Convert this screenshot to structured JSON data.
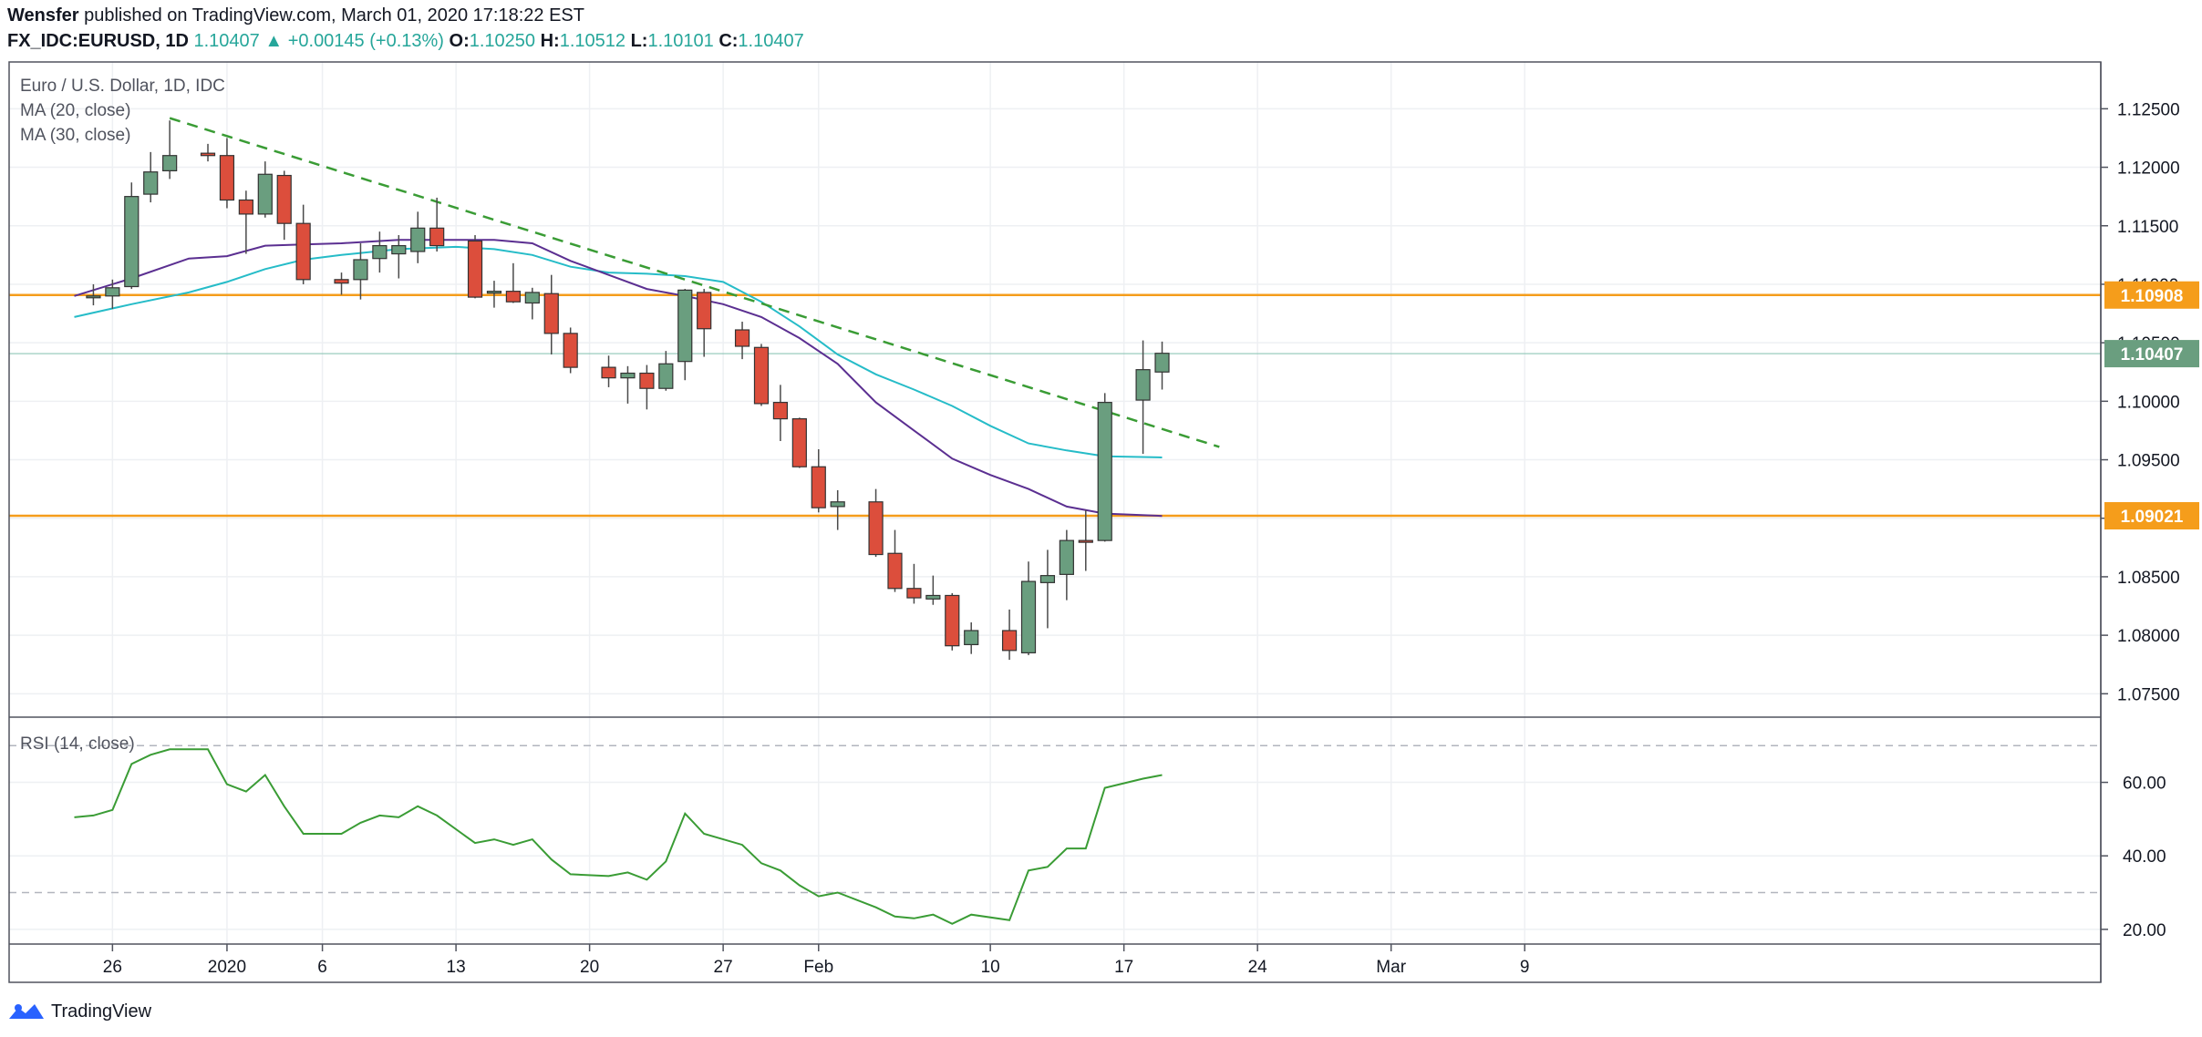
{
  "header": {
    "author": "Wensfer",
    "published_text": " published on TradingView.com, March 01, 2020 17:18:22 EST",
    "symbol": "FX_IDC:EURUSD, 1D",
    "last": "1.10407",
    "arrow": "▲",
    "change": "+0.00145 (+0.13%)",
    "o_label": "O:",
    "o_value": "1.10250",
    "h_label": "H:",
    "h_value": "1.10512",
    "l_label": "L:",
    "l_value": "1.10101",
    "c_label": "C:",
    "c_value": "1.10407"
  },
  "legend": {
    "title": "Euro / U.S. Dollar, 1D, IDC",
    "ma20": "MA (20, close)",
    "ma30": "MA (30, close)",
    "rsi": "RSI (14, close)"
  },
  "footer": {
    "brand": "TradingView"
  },
  "colors": {
    "up": "#6a9e7f",
    "down": "#dc4e3c",
    "ma20": "#5b2f91",
    "ma30": "#26bcc8",
    "trend": "#3a9c35",
    "hline": "#f59d1b",
    "rsi": "#3a9c35",
    "grid": "#eef0f3"
  },
  "chart_data": [
    {
      "type": "candlestick",
      "title": "Euro / U.S. Dollar, 1D, IDC",
      "ylim": [
        1.073,
        1.129
      ],
      "y_ticks": [
        1.075,
        1.08,
        1.085,
        1.09,
        1.095,
        1.1,
        1.105,
        1.11,
        1.115,
        1.12,
        1.125
      ],
      "y_tick_labels": [
        "1.07500",
        "1.08000",
        "1.08500",
        "1.09000",
        "1.09500",
        "1.10000",
        "1.10500",
        "1.11000",
        "1.11500",
        "1.12000",
        "1.12500"
      ],
      "x_ticks": [
        {
          "label": "26",
          "day": 2
        },
        {
          "label": "2020",
          "day": 8
        },
        {
          "label": "6",
          "day": 13
        },
        {
          "label": "13",
          "day": 20
        },
        {
          "label": "20",
          "day": 27
        },
        {
          "label": "27",
          "day": 34
        },
        {
          "label": "Feb",
          "day": 39
        },
        {
          "label": "10",
          "day": 48
        },
        {
          "label": "17",
          "day": 55
        },
        {
          "label": "24",
          "day": 62
        },
        {
          "label": "Mar",
          "day": 69
        },
        {
          "label": "9",
          "day": 76
        }
      ],
      "candles": [
        {
          "day": 1,
          "o": 1.1089,
          "h": 1.11,
          "l": 1.1082,
          "c": 1.109
        },
        {
          "day": 2,
          "o": 1.109,
          "h": 1.1104,
          "l": 1.1079,
          "c": 1.1097
        },
        {
          "day": 3,
          "o": 1.1098,
          "h": 1.1187,
          "l": 1.1096,
          "c": 1.1175
        },
        {
          "day": 4,
          "o": 1.1177,
          "h": 1.1213,
          "l": 1.117,
          "c": 1.1196
        },
        {
          "day": 5,
          "o": 1.1197,
          "h": 1.124,
          "l": 1.119,
          "c": 1.121
        },
        {
          "day": 7,
          "o": 1.1212,
          "h": 1.122,
          "l": 1.1205,
          "c": 1.121
        },
        {
          "day": 8,
          "o": 1.121,
          "h": 1.1225,
          "l": 1.1165,
          "c": 1.1172
        },
        {
          "day": 9,
          "o": 1.1172,
          "h": 1.118,
          "l": 1.1126,
          "c": 1.116
        },
        {
          "day": 10,
          "o": 1.116,
          "h": 1.1205,
          "l": 1.1157,
          "c": 1.1194
        },
        {
          "day": 11,
          "o": 1.1193,
          "h": 1.1197,
          "l": 1.1138,
          "c": 1.1152
        },
        {
          "day": 12,
          "o": 1.1152,
          "h": 1.1168,
          "l": 1.11,
          "c": 1.1104
        },
        {
          "day": 14,
          "o": 1.1104,
          "h": 1.111,
          "l": 1.1091,
          "c": 1.1101
        },
        {
          "day": 15,
          "o": 1.1104,
          "h": 1.1135,
          "l": 1.1087,
          "c": 1.1121
        },
        {
          "day": 16,
          "o": 1.1122,
          "h": 1.1145,
          "l": 1.111,
          "c": 1.1133
        },
        {
          "day": 17,
          "o": 1.1126,
          "h": 1.1142,
          "l": 1.1105,
          "c": 1.1133
        },
        {
          "day": 18,
          "o": 1.1128,
          "h": 1.1162,
          "l": 1.1118,
          "c": 1.1148
        },
        {
          "day": 19,
          "o": 1.1148,
          "h": 1.1174,
          "l": 1.1128,
          "c": 1.1133
        },
        {
          "day": 21,
          "o": 1.1137,
          "h": 1.1142,
          "l": 1.1088,
          "c": 1.1089
        },
        {
          "day": 22,
          "o": 1.1094,
          "h": 1.1103,
          "l": 1.108,
          "c": 1.1094
        },
        {
          "day": 23,
          "o": 1.1094,
          "h": 1.1118,
          "l": 1.1084,
          "c": 1.1085
        },
        {
          "day": 24,
          "o": 1.1084,
          "h": 1.1097,
          "l": 1.107,
          "c": 1.1093
        },
        {
          "day": 25,
          "o": 1.1092,
          "h": 1.1108,
          "l": 1.104,
          "c": 1.1058
        },
        {
          "day": 26,
          "o": 1.1058,
          "h": 1.1063,
          "l": 1.1024,
          "c": 1.1029
        },
        {
          "day": 28,
          "o": 1.1029,
          "h": 1.1039,
          "l": 1.1012,
          "c": 1.102
        },
        {
          "day": 29,
          "o": 1.102,
          "h": 1.103,
          "l": 1.0998,
          "c": 1.1024
        },
        {
          "day": 30,
          "o": 1.1024,
          "h": 1.1031,
          "l": 1.0993,
          "c": 1.1011
        },
        {
          "day": 31,
          "o": 1.1011,
          "h": 1.1043,
          "l": 1.1009,
          "c": 1.1032
        },
        {
          "day": 32,
          "o": 1.1034,
          "h": 1.1096,
          "l": 1.1018,
          "c": 1.1095
        },
        {
          "day": 33,
          "o": 1.1093,
          "h": 1.1096,
          "l": 1.1038,
          "c": 1.1062
        },
        {
          "day": 35,
          "o": 1.1061,
          "h": 1.1068,
          "l": 1.1036,
          "c": 1.1047
        },
        {
          "day": 36,
          "o": 1.1046,
          "h": 1.1049,
          "l": 1.0996,
          "c": 1.0998
        },
        {
          "day": 37,
          "o": 1.0999,
          "h": 1.1014,
          "l": 1.0966,
          "c": 1.0985
        },
        {
          "day": 38,
          "o": 1.0985,
          "h": 1.0986,
          "l": 1.0943,
          "c": 1.0944
        },
        {
          "day": 39,
          "o": 1.0944,
          "h": 1.0959,
          "l": 1.0905,
          "c": 1.0909
        },
        {
          "day": 40,
          "o": 1.091,
          "h": 1.0924,
          "l": 1.089,
          "c": 1.0914
        },
        {
          "day": 42,
          "o": 1.0914,
          "h": 1.0925,
          "l": 1.0867,
          "c": 1.0869
        },
        {
          "day": 43,
          "o": 1.087,
          "h": 1.089,
          "l": 1.0837,
          "c": 1.084
        },
        {
          "day": 44,
          "o": 1.084,
          "h": 1.0861,
          "l": 1.0827,
          "c": 1.0832
        },
        {
          "day": 45,
          "o": 1.0831,
          "h": 1.0851,
          "l": 1.0826,
          "c": 1.0834
        },
        {
          "day": 46,
          "o": 1.0834,
          "h": 1.0836,
          "l": 1.0787,
          "c": 1.0791
        },
        {
          "day": 47,
          "o": 1.0792,
          "h": 1.0811,
          "l": 1.0784,
          "c": 1.0804
        },
        {
          "day": 49,
          "o": 1.0804,
          "h": 1.0822,
          "l": 1.0779,
          "c": 1.0787
        },
        {
          "day": 50,
          "o": 1.0785,
          "h": 1.0863,
          "l": 1.0783,
          "c": 1.0846
        },
        {
          "day": 51,
          "o": 1.0845,
          "h": 1.0873,
          "l": 1.0806,
          "c": 1.0851
        },
        {
          "day": 52,
          "o": 1.0852,
          "h": 1.089,
          "l": 1.083,
          "c": 1.0881
        },
        {
          "day": 53,
          "o": 1.0881,
          "h": 1.0907,
          "l": 1.0855,
          "c": 1.088
        },
        {
          "day": 54,
          "o": 1.0881,
          "h": 1.1007,
          "l": 1.088,
          "c": 1.0999
        },
        {
          "day": 56,
          "o": 1.1001,
          "h": 1.1052,
          "l": 1.0955,
          "c": 1.1027
        },
        {
          "day": 57,
          "o": 1.1025,
          "h": 1.1051,
          "l": 1.101,
          "c": 1.1041
        }
      ],
      "ma20": [
        [
          0,
          1.109
        ],
        [
          3,
          1.1105
        ],
        [
          6,
          1.1122
        ],
        [
          8,
          1.1124
        ],
        [
          10,
          1.1133
        ],
        [
          12,
          1.1134
        ],
        [
          14,
          1.1135
        ],
        [
          17,
          1.1138
        ],
        [
          20,
          1.1138
        ],
        [
          22,
          1.1138
        ],
        [
          24,
          1.1135
        ],
        [
          26,
          1.112
        ],
        [
          28,
          1.1108
        ],
        [
          30,
          1.1096
        ],
        [
          32,
          1.109
        ],
        [
          34,
          1.1083
        ],
        [
          36,
          1.1072
        ],
        [
          38,
          1.1054
        ],
        [
          40,
          1.1032
        ],
        [
          42,
          1.0999
        ],
        [
          44,
          1.0975
        ],
        [
          46,
          1.0951
        ],
        [
          48,
          1.0937
        ],
        [
          50,
          1.0925
        ],
        [
          52,
          1.091
        ],
        [
          54,
          1.0904
        ],
        [
          57,
          1.0902
        ]
      ],
      "ma30": [
        [
          0,
          1.1072
        ],
        [
          3,
          1.1083
        ],
        [
          6,
          1.1093
        ],
        [
          8,
          1.1102
        ],
        [
          10,
          1.1113
        ],
        [
          12,
          1.1121
        ],
        [
          14,
          1.1125
        ],
        [
          17,
          1.113
        ],
        [
          20,
          1.1132
        ],
        [
          22,
          1.113
        ],
        [
          24,
          1.1125
        ],
        [
          26,
          1.1115
        ],
        [
          28,
          1.111
        ],
        [
          30,
          1.1109
        ],
        [
          32,
          1.1107
        ],
        [
          34,
          1.1102
        ],
        [
          36,
          1.1085
        ],
        [
          38,
          1.1064
        ],
        [
          40,
          1.104
        ],
        [
          42,
          1.1023
        ],
        [
          44,
          1.101
        ],
        [
          46,
          1.0996
        ],
        [
          48,
          1.0979
        ],
        [
          50,
          1.0964
        ],
        [
          52,
          1.0958
        ],
        [
          54,
          1.0953
        ],
        [
          57,
          1.0952
        ]
      ],
      "trendline": [
        [
          5,
          1.1242
        ],
        [
          60,
          1.0961
        ]
      ],
      "hlines": [
        {
          "value": 1.10908,
          "label": "1.10908"
        },
        {
          "value": 1.09021,
          "label": "1.09021"
        }
      ],
      "last_price": {
        "value": 1.10407,
        "label": "1.10407"
      }
    },
    {
      "type": "line",
      "title": "RSI (14, close)",
      "ylim": [
        16,
        77
      ],
      "y_ticks": [
        20,
        40,
        60
      ],
      "y_tick_labels": [
        "20.00",
        "40.00",
        "60.00"
      ],
      "bands": [
        70,
        30
      ],
      "x": [
        0,
        1,
        2,
        3,
        4,
        5,
        7,
        8,
        9,
        10,
        11,
        12,
        14,
        15,
        16,
        17,
        18,
        19,
        21,
        22,
        23,
        24,
        25,
        26,
        28,
        29,
        30,
        31,
        32,
        33,
        35,
        36,
        37,
        38,
        39,
        40,
        42,
        43,
        44,
        45,
        46,
        47,
        49,
        50,
        51,
        52,
        53,
        54,
        56,
        57
      ],
      "values": [
        50.5,
        51.0,
        52.5,
        65.0,
        67.5,
        69.0,
        69.0,
        59.5,
        57.5,
        62.0,
        53.5,
        46.0,
        46.0,
        49.0,
        51.0,
        50.5,
        53.5,
        51.0,
        43.5,
        44.5,
        43.0,
        44.5,
        39.0,
        35.0,
        34.5,
        35.5,
        33.5,
        38.5,
        51.5,
        46.0,
        43.0,
        38.0,
        36.0,
        32.0,
        29.0,
        30.0,
        26.0,
        23.5,
        23.0,
        24.0,
        21.5,
        24.0,
        22.5,
        36.0,
        37.0,
        42.0,
        42.0,
        58.5,
        61.0,
        62.0
      ]
    }
  ]
}
